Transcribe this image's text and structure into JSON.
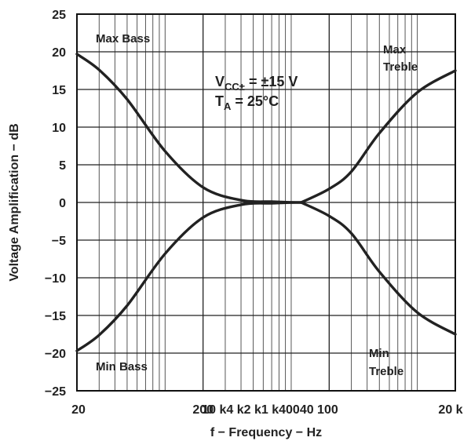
{
  "chart_data": {
    "type": "line",
    "x_scale": "log",
    "xlim": [
      20,
      20000
    ],
    "ylim": [
      -25,
      25
    ],
    "grid": true,
    "xlabel": "f − Frequency − Hz",
    "ylabel": "Voltage Amplification − dB",
    "x_ticks": [
      {
        "value": 20,
        "label": "20"
      },
      {
        "value": 200,
        "label": "200"
      },
      {
        "value": 2000,
        "label": "2 k"
      },
      {
        "value": 20000,
        "label": "20 k"
      }
    ],
    "x_tick_run": "10 k4 k2 k1 k40040 100",
    "y_ticks": [
      25,
      20,
      15,
      10,
      5,
      0,
      -5,
      -10,
      -15,
      -20,
      -25
    ],
    "conditions": {
      "vcc_main": "V",
      "vcc_sub": "CC±",
      "vcc_value": " = ±15 V",
      "ta_main": "T",
      "ta_sub": "A",
      "ta_value": " = 25°C"
    },
    "annotations": {
      "max_bass": "Max Bass",
      "min_bass": "Min Bass",
      "max_treble_1": "Max",
      "max_treble_2": "Treble",
      "min_treble_1": "Min",
      "min_treble_2": "Treble"
    },
    "series": [
      {
        "id": "max-bass",
        "x": [
          20,
          30,
          50,
          100,
          200,
          400,
          700,
          1000,
          1200
        ],
        "y": [
          19.7,
          17.6,
          13.7,
          6.8,
          2.0,
          0.3,
          0.1,
          0,
          0
        ]
      },
      {
        "id": "min-bass",
        "x": [
          20,
          30,
          50,
          100,
          200,
          400,
          700,
          1000,
          1200
        ],
        "y": [
          -19.7,
          -17.6,
          -13.7,
          -6.8,
          -2.0,
          -0.3,
          -0.1,
          0,
          0
        ]
      },
      {
        "id": "max-treble",
        "x": [
          1200,
          2000,
          3000,
          5000,
          10000,
          20000
        ],
        "y": [
          0,
          1.8,
          4.1,
          9.2,
          14.6,
          17.5
        ]
      },
      {
        "id": "min-treble",
        "x": [
          1200,
          2000,
          3000,
          5000,
          10000,
          20000
        ],
        "y": [
          0,
          -1.8,
          -4.1,
          -9.2,
          -14.6,
          -17.5
        ]
      }
    ]
  }
}
